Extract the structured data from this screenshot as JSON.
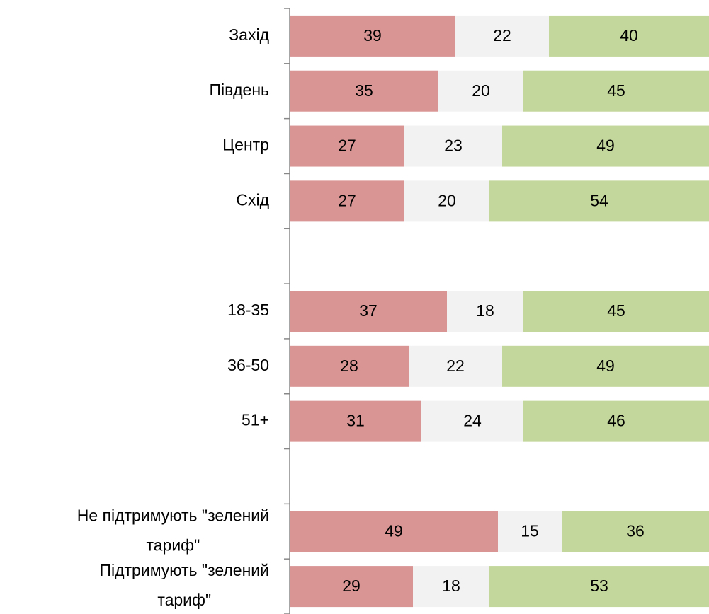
{
  "chart_data": {
    "type": "stacked-bar-horizontal",
    "categories": [
      "Захід",
      "Південь",
      "Центр",
      "Схід",
      null,
      "18-35",
      "36-50",
      "51+",
      null,
      "Не підтримують \"зелений тариф\"",
      "Підтримують \"зелений тариф\""
    ],
    "series": [
      {
        "color": "#d99594",
        "values": [
          39,
          35,
          27,
          27,
          null,
          37,
          28,
          31,
          null,
          49,
          29
        ]
      },
      {
        "color": "#f2f2f2",
        "values": [
          22,
          20,
          23,
          20,
          null,
          18,
          22,
          24,
          null,
          15,
          18
        ]
      },
      {
        "color": "#c3d69b",
        "values": [
          40,
          45,
          49,
          54,
          null,
          45,
          49,
          46,
          null,
          36,
          53
        ]
      }
    ],
    "xlim": [
      0,
      100
    ]
  }
}
